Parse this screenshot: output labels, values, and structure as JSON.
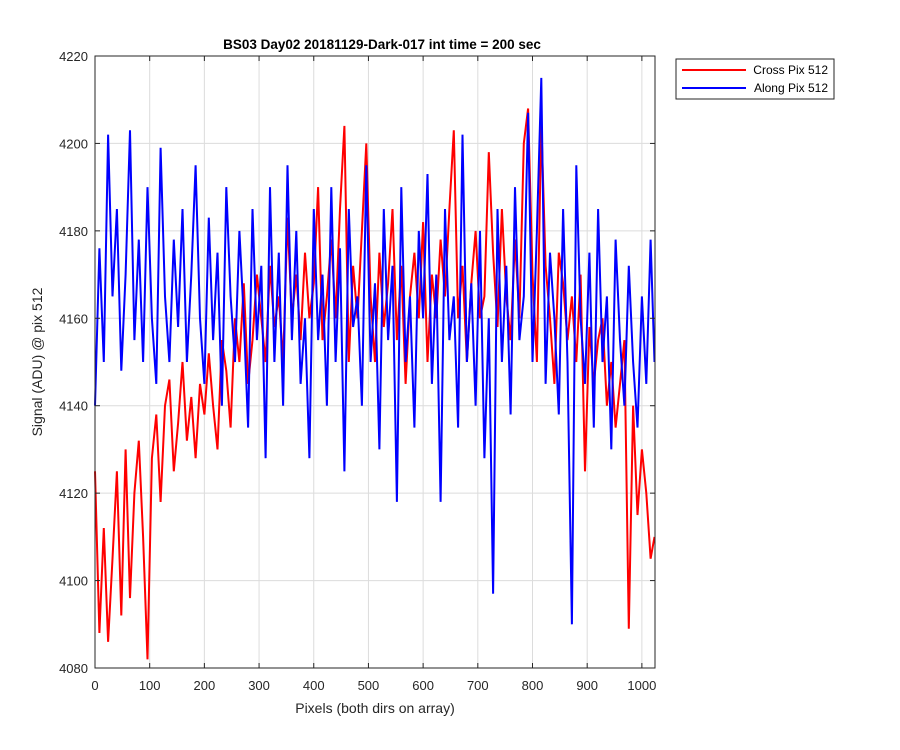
{
  "chart_data": {
    "type": "line",
    "title": "BS03 Day02 20181129-Dark-017 int time = 200 sec",
    "xlabel": "Pixels (both dirs on array)",
    "ylabel": "Signal (ADU) @ pix 512",
    "xlim": [
      0,
      1024
    ],
    "ylim": [
      4080,
      4220
    ],
    "xticks": [
      0,
      100,
      200,
      300,
      400,
      500,
      600,
      700,
      800,
      900,
      1000
    ],
    "yticks": [
      4080,
      4100,
      4120,
      4140,
      4160,
      4180,
      4200,
      4220
    ],
    "grid": true,
    "legend_position": "outside-top-right",
    "series": [
      {
        "name": "Cross Pix 512",
        "color": "#ff0000",
        "x": [
          0,
          8,
          16,
          24,
          32,
          40,
          48,
          56,
          64,
          72,
          80,
          88,
          96,
          104,
          112,
          120,
          128,
          136,
          144,
          152,
          160,
          168,
          176,
          184,
          192,
          200,
          208,
          216,
          224,
          232,
          240,
          248,
          256,
          264,
          272,
          280,
          288,
          296,
          304,
          312,
          320,
          328,
          336,
          344,
          352,
          360,
          368,
          376,
          384,
          392,
          400,
          408,
          416,
          424,
          432,
          440,
          448,
          456,
          464,
          472,
          480,
          488,
          496,
          504,
          512,
          520,
          528,
          536,
          544,
          552,
          560,
          568,
          576,
          584,
          592,
          600,
          608,
          616,
          624,
          632,
          640,
          648,
          656,
          664,
          672,
          680,
          688,
          696,
          704,
          712,
          720,
          728,
          736,
          744,
          752,
          760,
          768,
          776,
          784,
          792,
          800,
          808,
          816,
          824,
          832,
          840,
          848,
          856,
          864,
          872,
          880,
          888,
          896,
          904,
          912,
          920,
          928,
          936,
          944,
          952,
          960,
          968,
          976,
          984,
          992,
          1000,
          1008,
          1016,
          1023
        ],
        "y": [
          4125,
          4088,
          4112,
          4086,
          4105,
          4125,
          4092,
          4130,
          4096,
          4120,
          4132,
          4110,
          4082,
          4128,
          4138,
          4118,
          4140,
          4146,
          4125,
          4136,
          4150,
          4132,
          4142,
          4128,
          4145,
          4138,
          4152,
          4140,
          4130,
          4155,
          4148,
          4135,
          4160,
          4150,
          4168,
          4145,
          4155,
          4170,
          4160,
          4150,
          4172,
          4158,
          4165,
          4150,
          4183,
          4160,
          4170,
          4155,
          4175,
          4160,
          4168,
          4190,
          4155,
          4165,
          4178,
          4160,
          4185,
          4204,
          4150,
          4172,
          4160,
          4180,
          4200,
          4165,
          4150,
          4175,
          4158,
          4168,
          4185,
          4155,
          4172,
          4145,
          4165,
          4175,
          4160,
          4182,
          4150,
          4170,
          4160,
          4178,
          4165,
          4185,
          4203,
          4160,
          4172,
          4150,
          4168,
          4180,
          4160,
          4165,
          4198,
          4175,
          4158,
          4185,
          4165,
          4155,
          4178,
          4160,
          4200,
          4208,
          4170,
          4150,
          4205,
          4172,
          4160,
          4145,
          4175,
          4168,
          4155,
          4165,
          4150,
          4170,
          4125,
          4158,
          4145,
          4155,
          4160,
          4140,
          4150,
          4135,
          4145,
          4155,
          4089,
          4140,
          4115,
          4130,
          4120,
          4105,
          4110
        ]
      },
      {
        "name": "Along Pix 512",
        "color": "#0000ff",
        "x": [
          0,
          8,
          16,
          24,
          32,
          40,
          48,
          56,
          64,
          72,
          80,
          88,
          96,
          104,
          112,
          120,
          128,
          136,
          144,
          152,
          160,
          168,
          176,
          184,
          192,
          200,
          208,
          216,
          224,
          232,
          240,
          248,
          256,
          264,
          272,
          280,
          288,
          296,
          304,
          312,
          320,
          328,
          336,
          344,
          352,
          360,
          368,
          376,
          384,
          392,
          400,
          408,
          416,
          424,
          432,
          440,
          448,
          456,
          464,
          472,
          480,
          488,
          496,
          504,
          512,
          520,
          528,
          536,
          544,
          552,
          560,
          568,
          576,
          584,
          592,
          600,
          608,
          616,
          624,
          632,
          640,
          648,
          656,
          664,
          672,
          680,
          688,
          696,
          704,
          712,
          720,
          728,
          736,
          744,
          752,
          760,
          768,
          776,
          784,
          792,
          800,
          808,
          816,
          824,
          832,
          840,
          848,
          856,
          864,
          872,
          880,
          888,
          896,
          904,
          912,
          920,
          928,
          936,
          944,
          952,
          960,
          968,
          976,
          984,
          992,
          1000,
          1008,
          1016,
          1023
        ],
        "y": [
          4140,
          4176,
          4150,
          4202,
          4165,
          4185,
          4148,
          4170,
          4203,
          4155,
          4178,
          4150,
          4190,
          4160,
          4145,
          4199,
          4165,
          4150,
          4178,
          4158,
          4185,
          4150,
          4170,
          4195,
          4160,
          4145,
          4183,
          4155,
          4175,
          4140,
          4190,
          4165,
          4150,
          4180,
          4160,
          4135,
          4185,
          4155,
          4172,
          4128,
          4190,
          4150,
          4175,
          4140,
          4195,
          4155,
          4180,
          4145,
          4160,
          4128,
          4185,
          4155,
          4170,
          4140,
          4190,
          4150,
          4176,
          4125,
          4185,
          4158,
          4165,
          4140,
          4195,
          4150,
          4168,
          4130,
          4185,
          4155,
          4172,
          4118,
          4190,
          4150,
          4165,
          4135,
          4180,
          4160,
          4193,
          4145,
          4170,
          4118,
          4185,
          4155,
          4165,
          4135,
          4202,
          4150,
          4168,
          4140,
          4180,
          4128,
          4160,
          4097,
          4185,
          4150,
          4172,
          4138,
          4190,
          4155,
          4165,
          4207,
          4150,
          4180,
          4215,
          4145,
          4175,
          4160,
          4138,
          4185,
          4150,
          4090,
          4195,
          4160,
          4145,
          4175,
          4135,
          4185,
          4150,
          4165,
          4130,
          4178,
          4155,
          4140,
          4172,
          4150,
          4135,
          4165,
          4145,
          4178,
          4150
        ]
      }
    ]
  }
}
